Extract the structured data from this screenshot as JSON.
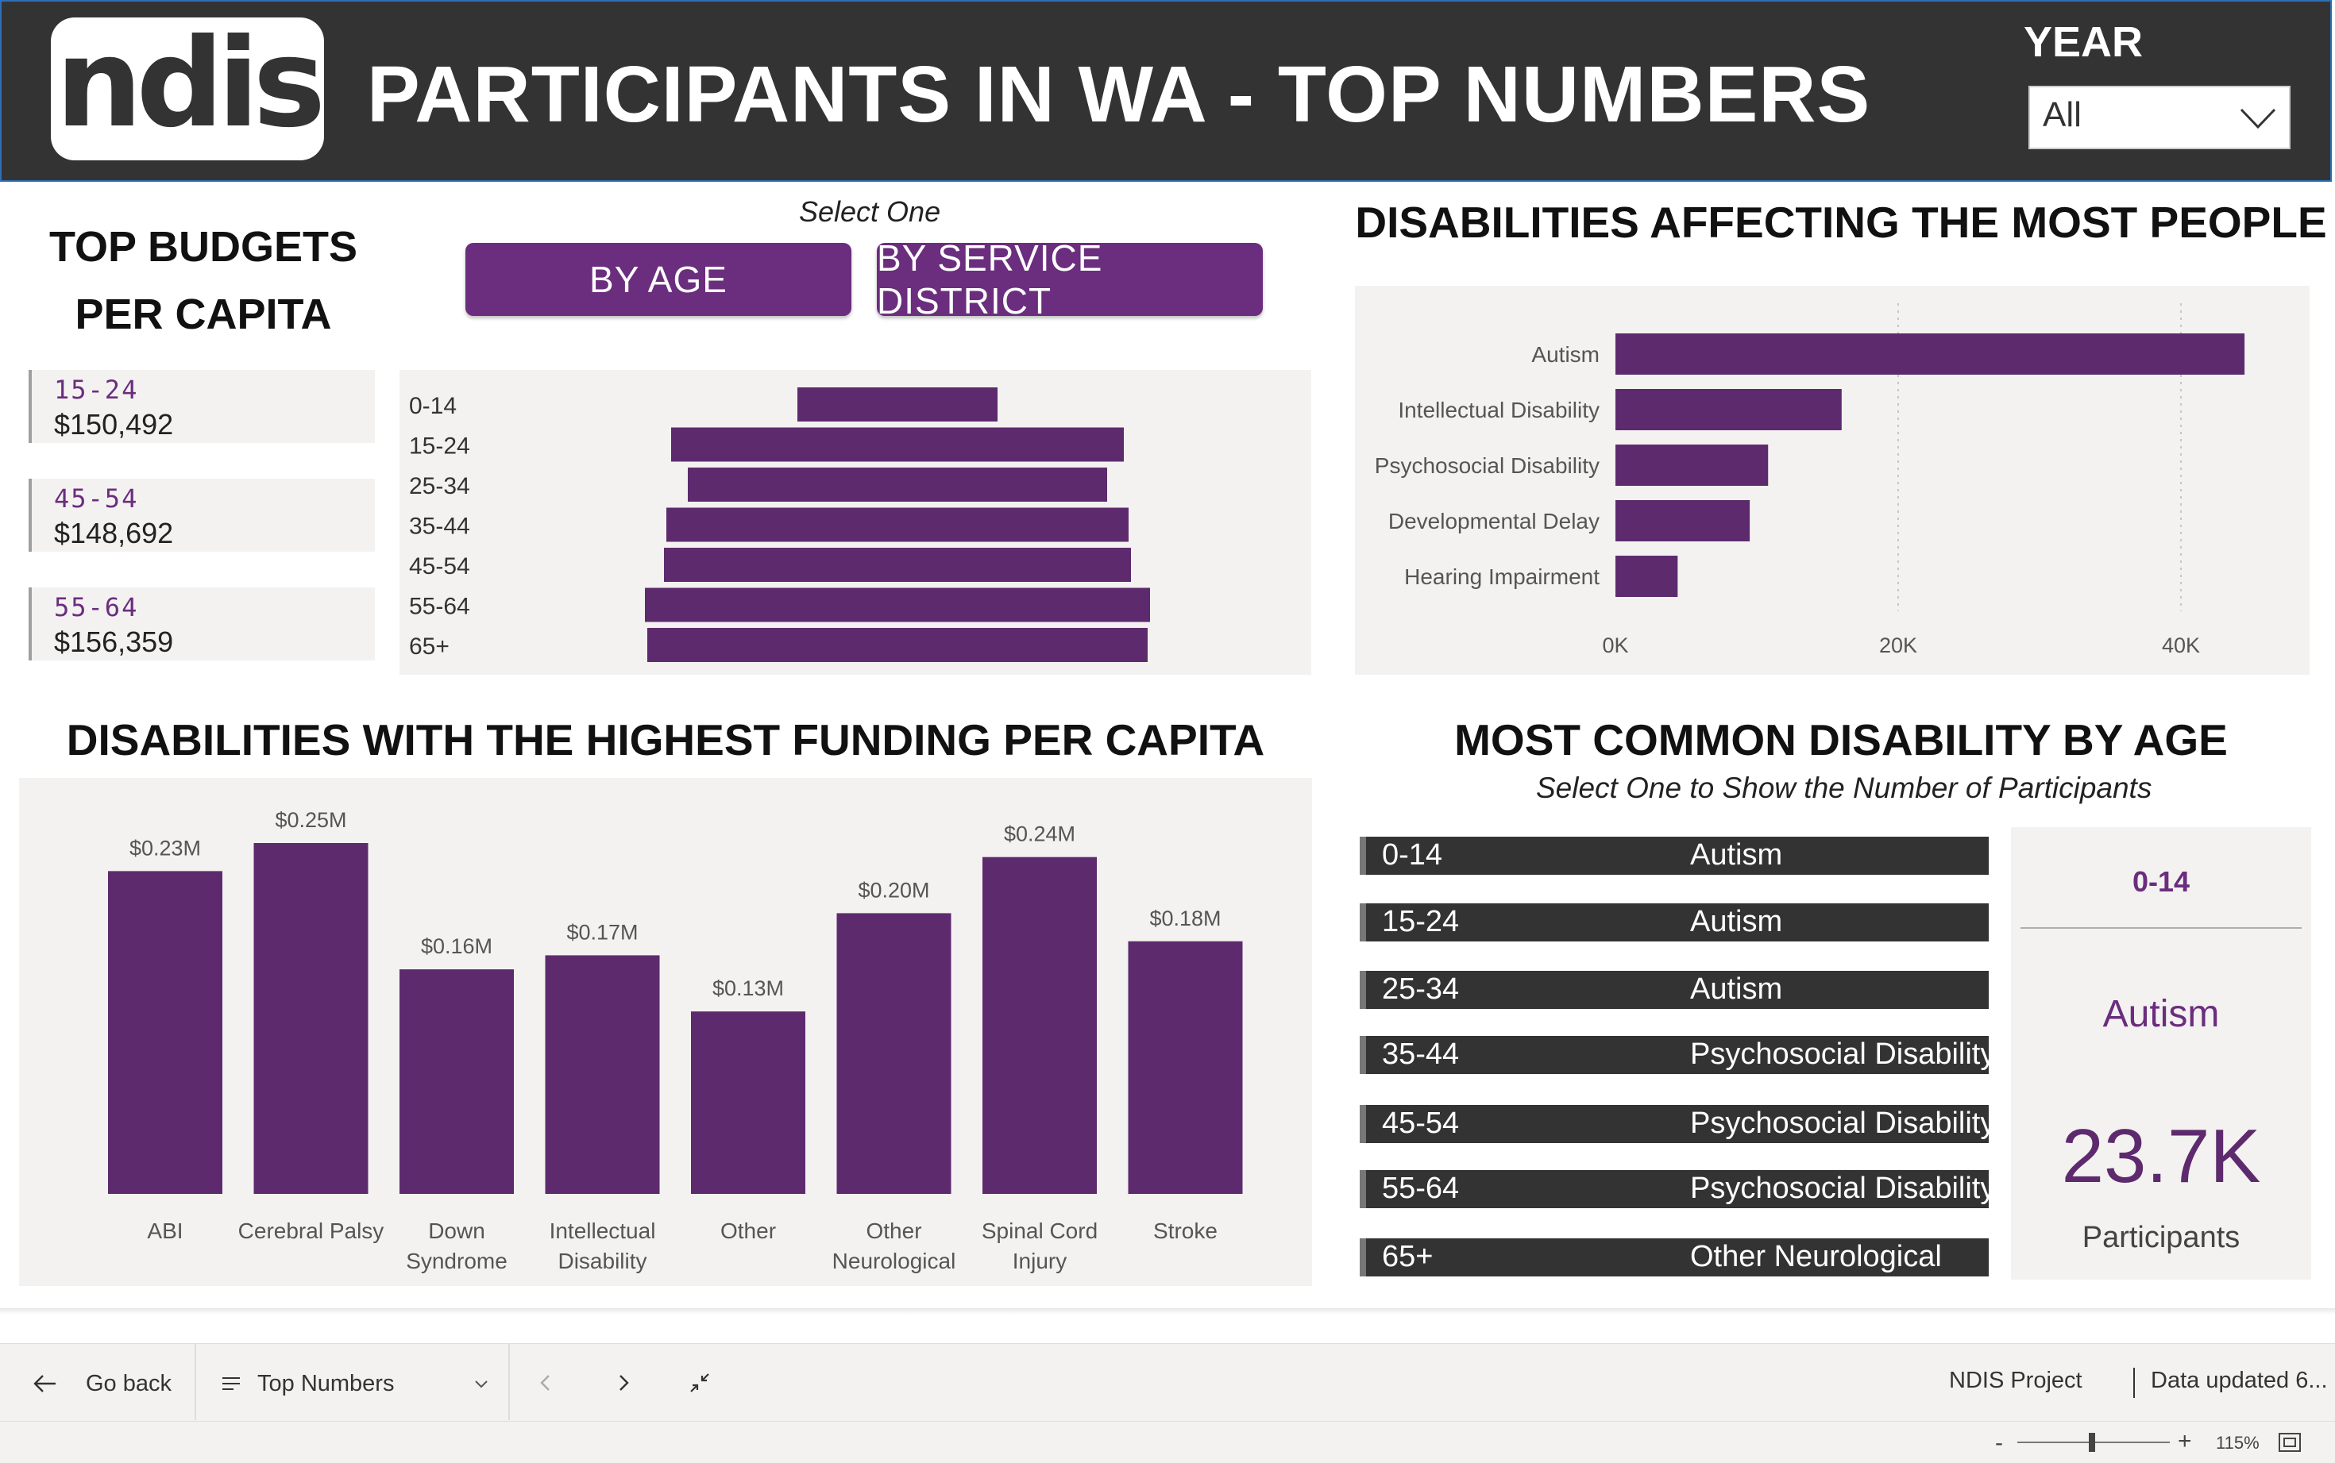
{
  "header": {
    "logo_text": "ndis",
    "title": "PARTICIPANTS IN WA - TOP NUMBERS",
    "year_label": "YEAR",
    "year_value": "All"
  },
  "top_budgets": {
    "title_line1": "TOP BUDGETS",
    "title_line2": "PER CAPITA",
    "select_hint": "Select One",
    "buttons": [
      "BY AGE",
      "BY SERVICE DISTRICT"
    ],
    "cards": [
      {
        "label": "15-24",
        "value": "$150,492"
      },
      {
        "label": "45-54",
        "value": "$148,692"
      },
      {
        "label": "55-64",
        "value": "$156,359"
      }
    ],
    "accent": "#6b2d7e"
  },
  "chart_data": [
    {
      "type": "bar",
      "orientation": "horizontal-centered",
      "categories": [
        "0-14",
        "15-24",
        "25-34",
        "35-44",
        "45-54",
        "55-64",
        "65+"
      ],
      "values": [
        0.42,
        0.95,
        0.88,
        0.97,
        0.98,
        1.06,
        1.05
      ],
      "value_unit": "relative",
      "color": "#5e2a6e"
    },
    {
      "type": "bar",
      "orientation": "horizontal",
      "title": "DISABILITIES AFFECTING THE MOST PEOPLE",
      "categories": [
        "Autism",
        "Intellectual Disability",
        "Psychosocial Disability",
        "Developmental Delay",
        "Hearing Impairment"
      ],
      "values": [
        44500,
        16000,
        10800,
        9500,
        4400
      ],
      "xlim": [
        0,
        48000
      ],
      "xticks": [
        "0K",
        "20K",
        "40K"
      ],
      "grid": true,
      "color": "#5e2a6e"
    },
    {
      "type": "bar",
      "title": "DISABILITIES WITH THE HIGHEST FUNDING PER CAPITA",
      "categories": [
        "ABI",
        "Cerebral Palsy",
        "Down Syndrome",
        "Intellectual Disability",
        "Other",
        "Other Neurological",
        "Spinal Cord Injury",
        "Stroke"
      ],
      "category_lines": [
        [
          "ABI"
        ],
        [
          "Cerebral Palsy"
        ],
        [
          "Down",
          "Syndrome"
        ],
        [
          "Intellectual",
          "Disability"
        ],
        [
          "Other"
        ],
        [
          "Other",
          "Neurological"
        ],
        [
          "Spinal Cord",
          "Injury"
        ],
        [
          "Stroke"
        ]
      ],
      "values": [
        0.23,
        0.25,
        0.16,
        0.17,
        0.13,
        0.2,
        0.24,
        0.18
      ],
      "labels": [
        "$0.23M",
        "$0.25M",
        "$0.16M",
        "$0.17M",
        "$0.13M",
        "$0.20M",
        "$0.24M",
        "$0.18M"
      ],
      "ylim": [
        0,
        0.25
      ],
      "color": "#5e2a6e"
    }
  ],
  "most_common": {
    "title": "MOST COMMON DISABILITY BY AGE",
    "subtitle": "Select One to Show the Number of Participants",
    "rows": [
      {
        "age": "0-14",
        "disability": "Autism"
      },
      {
        "age": "15-24",
        "disability": "Autism"
      },
      {
        "age": "25-34",
        "disability": "Autism"
      },
      {
        "age": "35-44",
        "disability": "Psychosocial Disability"
      },
      {
        "age": "45-54",
        "disability": "Psychosocial Disability"
      },
      {
        "age": "55-64",
        "disability": "Psychosocial Disability"
      },
      {
        "age": "65+",
        "disability": "Other Neurological"
      }
    ],
    "card": {
      "age": "0-14",
      "disability": "Autism",
      "count": "23.7K",
      "count_label": "Participants"
    }
  },
  "bottom_bar": {
    "go_back": "Go back",
    "page_name": "Top Numbers",
    "project": "NDIS Project",
    "data_updated": "Data updated 6...",
    "zoom": "115%"
  }
}
